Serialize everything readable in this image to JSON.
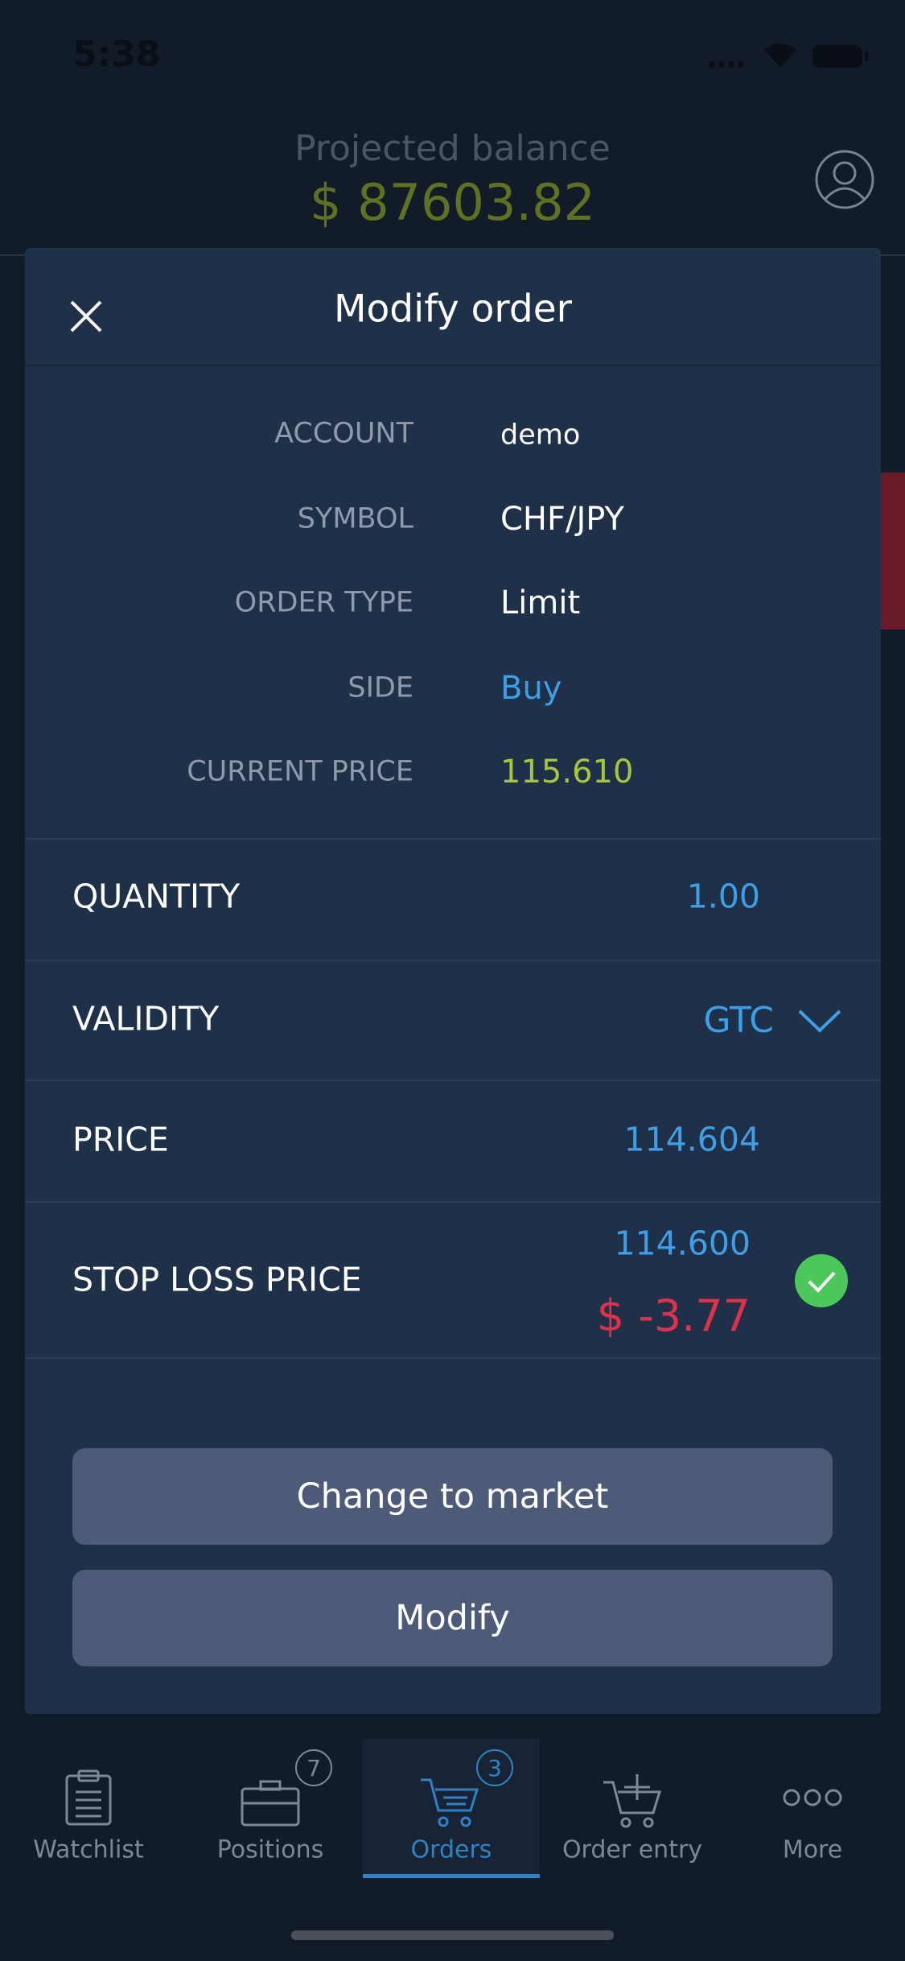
{
  "status": {
    "time": "5:38"
  },
  "header": {
    "title": "Projected balance",
    "balance": "$ 87603.82"
  },
  "modal": {
    "title": "Modify order",
    "info": [
      {
        "label": "ACCOUNT",
        "value": "demo"
      },
      {
        "label": "SYMBOL",
        "value": "CHF/JPY"
      },
      {
        "label": "ORDER TYPE",
        "value": "Limit"
      },
      {
        "label": "SIDE",
        "value": "Buy"
      },
      {
        "label": "CURRENT PRICE",
        "value": "115.610"
      }
    ],
    "fields": {
      "quantity": {
        "label": "QUANTITY",
        "value": "1.00"
      },
      "validity": {
        "label": "VALIDITY",
        "value": "GTC"
      },
      "price": {
        "label": "PRICE",
        "value": "114.604"
      },
      "stop_loss": {
        "label": "STOP LOSS PRICE",
        "value": "114.600",
        "pnl": "$ -3.77"
      }
    },
    "buttons": [
      "Change to market",
      "Modify"
    ]
  },
  "tabs": [
    {
      "label": "Watchlist"
    },
    {
      "label": "Positions",
      "badge": "7"
    },
    {
      "label": "Orders",
      "badge": "3"
    },
    {
      "label": "Order entry"
    },
    {
      "label": "More"
    }
  ]
}
